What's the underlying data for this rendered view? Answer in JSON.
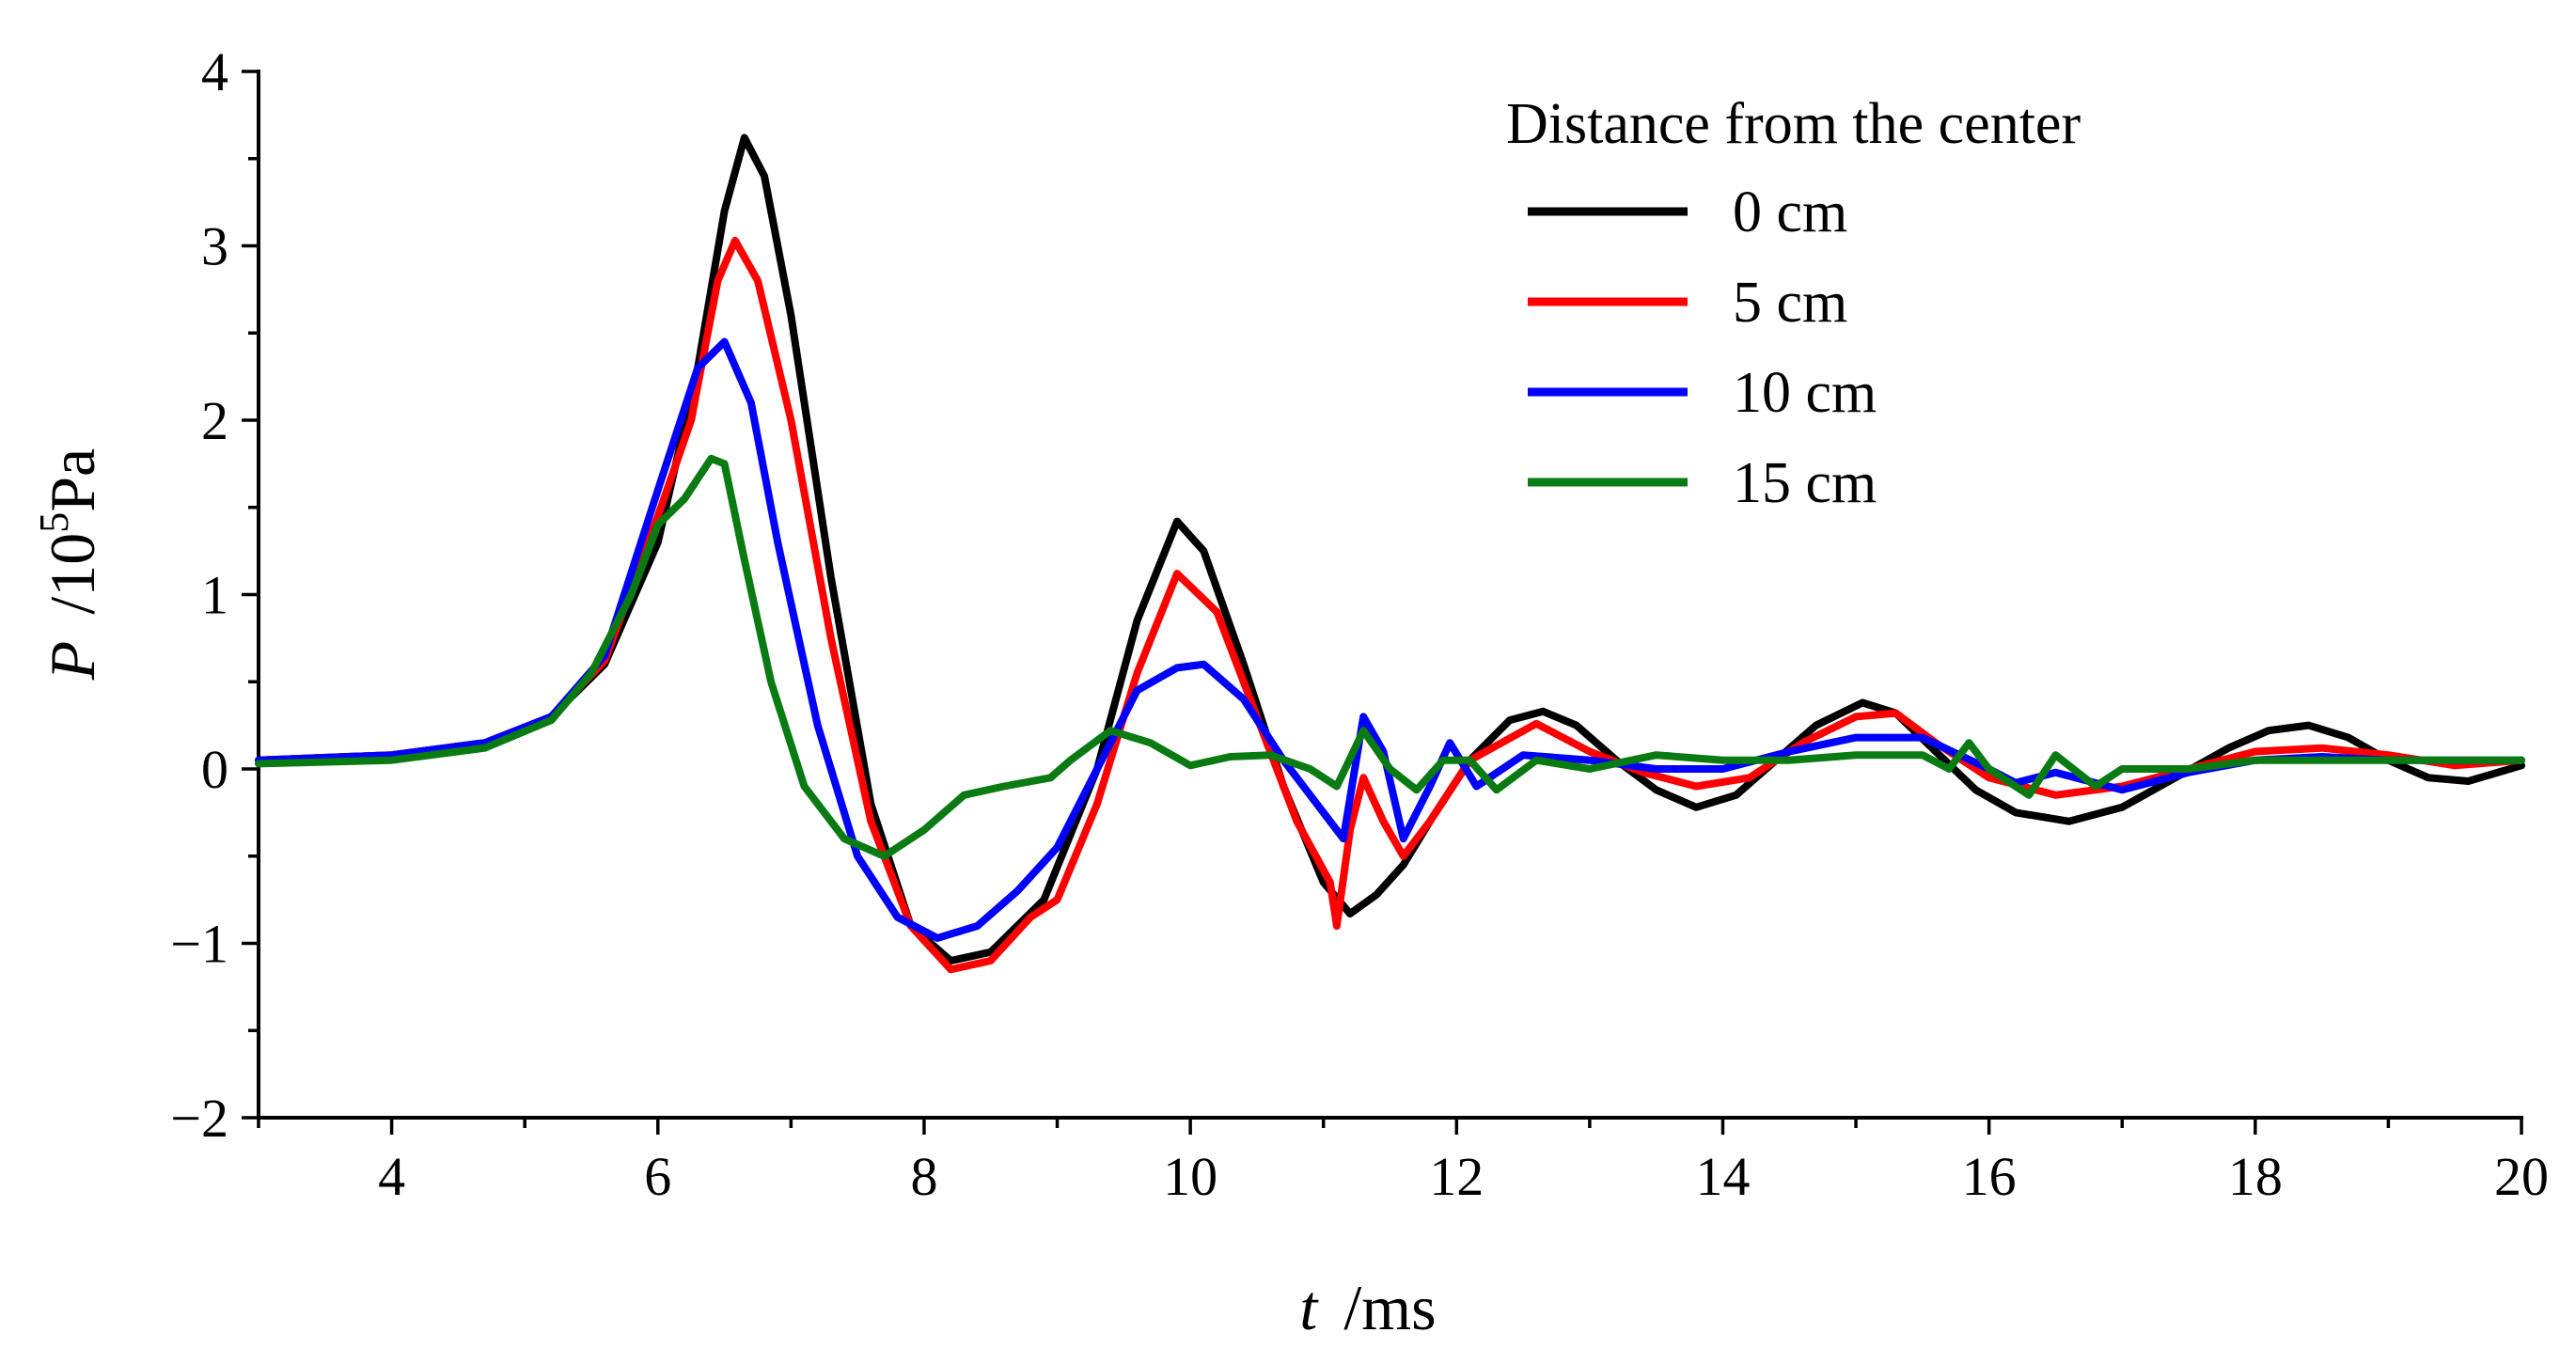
{
  "chart_data": {
    "type": "line",
    "title": "",
    "xlabel": {
      "var": "t",
      "unit": "/ms"
    },
    "ylabel": {
      "var": "P",
      "unit_prefix": "/10",
      "unit_exp": "5",
      "unit_suffix": "Pa"
    },
    "xlim": [
      3,
      20
    ],
    "ylim": [
      -2,
      4
    ],
    "xticks": [
      4,
      6,
      8,
      10,
      12,
      14,
      16,
      18,
      20
    ],
    "yticks": [
      -2,
      -1,
      0,
      1,
      2,
      3,
      4
    ],
    "ytick_labels": [
      "−2",
      "−1",
      "0",
      "1",
      "2",
      "3",
      "4"
    ],
    "grid": false,
    "legend": {
      "title": "Distance from the center",
      "position": "top-right"
    },
    "series": [
      {
        "name": "0 cm",
        "color": "#000000",
        "x": [
          3.0,
          4.0,
          4.7,
          5.2,
          5.6,
          6.0,
          6.3,
          6.5,
          6.65,
          6.8,
          7.0,
          7.3,
          7.6,
          7.9,
          8.2,
          8.5,
          8.9,
          9.3,
          9.6,
          9.9,
          10.1,
          10.4,
          10.7,
          11.0,
          11.2,
          11.4,
          11.6,
          11.8,
          12.1,
          12.4,
          12.65,
          12.9,
          13.2,
          13.5,
          13.8,
          14.1,
          14.4,
          14.7,
          15.05,
          15.3,
          15.6,
          15.9,
          16.2,
          16.6,
          17.0,
          17.4,
          17.8,
          18.1,
          18.4,
          18.7,
          19.0,
          19.3,
          19.6,
          20.0
        ],
        "y": [
          0.05,
          0.08,
          0.15,
          0.3,
          0.6,
          1.3,
          2.3,
          3.2,
          3.62,
          3.4,
          2.6,
          1.1,
          -0.2,
          -0.9,
          -1.1,
          -1.05,
          -0.75,
          0.0,
          0.85,
          1.42,
          1.25,
          0.6,
          -0.1,
          -0.65,
          -0.83,
          -0.72,
          -0.55,
          -0.3,
          0.05,
          0.28,
          0.33,
          0.25,
          0.05,
          -0.12,
          -0.22,
          -0.15,
          0.05,
          0.25,
          0.38,
          0.32,
          0.1,
          -0.12,
          -0.25,
          -0.3,
          -0.22,
          -0.05,
          0.12,
          0.22,
          0.25,
          0.18,
          0.05,
          -0.05,
          -0.07,
          0.02
        ]
      },
      {
        "name": "5 cm",
        "color": "#ff0000",
        "x": [
          3.0,
          4.0,
          4.7,
          5.2,
          5.6,
          6.0,
          6.25,
          6.3,
          6.45,
          6.58,
          6.75,
          7.0,
          7.3,
          7.6,
          7.9,
          8.2,
          8.5,
          8.8,
          9.0,
          9.3,
          9.6,
          9.9,
          10.2,
          10.5,
          10.8,
          11.05,
          11.1,
          11.2,
          11.3,
          11.45,
          11.6,
          11.8,
          12.1,
          12.6,
          13.0,
          13.4,
          13.8,
          14.2,
          14.6,
          15.0,
          15.3,
          15.6,
          16.0,
          16.5,
          17.0,
          17.5,
          18.0,
          18.5,
          19.0,
          19.5,
          20.0
        ],
        "y": [
          0.05,
          0.08,
          0.15,
          0.3,
          0.62,
          1.45,
          2.0,
          2.2,
          2.8,
          3.03,
          2.8,
          2.0,
          0.75,
          -0.3,
          -0.9,
          -1.15,
          -1.1,
          -0.85,
          -0.75,
          -0.2,
          0.55,
          1.12,
          0.9,
          0.3,
          -0.3,
          -0.65,
          -0.9,
          -0.35,
          -0.05,
          -0.3,
          -0.5,
          -0.3,
          0.05,
          0.26,
          0.1,
          -0.02,
          -0.1,
          -0.05,
          0.15,
          0.3,
          0.32,
          0.15,
          -0.05,
          -0.15,
          -0.1,
          0.0,
          0.1,
          0.12,
          0.08,
          0.02,
          0.05
        ]
      },
      {
        "name": "10 cm",
        "color": "#0000ff",
        "x": [
          3.0,
          4.0,
          4.7,
          5.2,
          5.6,
          6.0,
          6.3,
          6.5,
          6.7,
          6.9,
          7.2,
          7.5,
          7.8,
          8.1,
          8.4,
          8.7,
          9.0,
          9.3,
          9.6,
          9.9,
          10.1,
          10.4,
          10.7,
          11.0,
          11.15,
          11.3,
          11.45,
          11.6,
          11.8,
          11.95,
          12.15,
          12.5,
          13.0,
          13.5,
          14.0,
          14.5,
          15.0,
          15.5,
          16.0,
          16.2,
          16.5,
          17.0,
          17.5,
          18.0,
          18.5,
          19.0,
          19.5,
          20.0
        ],
        "y": [
          0.05,
          0.08,
          0.15,
          0.3,
          0.65,
          1.6,
          2.3,
          2.45,
          2.1,
          1.3,
          0.25,
          -0.5,
          -0.85,
          -0.97,
          -0.9,
          -0.7,
          -0.45,
          0.0,
          0.45,
          0.58,
          0.6,
          0.4,
          0.05,
          -0.25,
          -0.4,
          0.3,
          0.1,
          -0.4,
          -0.1,
          0.15,
          -0.1,
          0.08,
          0.05,
          0.0,
          0.0,
          0.1,
          0.18,
          0.18,
          0.0,
          -0.08,
          -0.02,
          -0.12,
          -0.02,
          0.05,
          0.07,
          0.05,
          0.05,
          0.05
        ]
      },
      {
        "name": "15 cm",
        "color": "#0a7a12",
        "x": [
          3.0,
          4.0,
          4.7,
          5.2,
          5.5,
          5.8,
          6.0,
          6.2,
          6.4,
          6.5,
          6.65,
          6.85,
          7.1,
          7.4,
          7.7,
          8.0,
          8.3,
          8.6,
          8.95,
          9.1,
          9.4,
          9.7,
          10.0,
          10.3,
          10.6,
          10.9,
          11.1,
          11.3,
          11.5,
          11.7,
          11.9,
          12.1,
          12.3,
          12.6,
          13.0,
          13.5,
          14.0,
          14.5,
          15.0,
          15.5,
          15.7,
          15.85,
          16.0,
          16.3,
          16.5,
          16.8,
          17.0,
          17.5,
          18.0,
          18.5,
          19.0,
          19.5,
          20.0
        ],
        "y": [
          0.03,
          0.05,
          0.12,
          0.28,
          0.55,
          1.0,
          1.4,
          1.55,
          1.78,
          1.75,
          1.2,
          0.5,
          -0.1,
          -0.4,
          -0.5,
          -0.35,
          -0.15,
          -0.1,
          -0.05,
          0.05,
          0.22,
          0.15,
          0.02,
          0.07,
          0.08,
          0.0,
          -0.1,
          0.22,
          0.0,
          -0.12,
          0.05,
          0.05,
          -0.12,
          0.05,
          0.0,
          0.08,
          0.05,
          0.05,
          0.08,
          0.08,
          0.0,
          0.15,
          0.0,
          -0.15,
          0.08,
          -0.1,
          0.0,
          0.0,
          0.05,
          0.05,
          0.05,
          0.05,
          0.05
        ]
      }
    ]
  }
}
